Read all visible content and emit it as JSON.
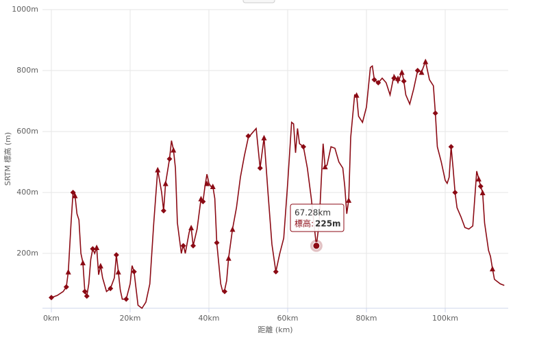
{
  "chart_data": {
    "type": "line",
    "x_label": "距離 (km)",
    "y_label": "SRTM 標高 (m)",
    "xlim": [
      -2.26,
      116
    ],
    "ylim": [
      20,
      1000
    ],
    "xticks": [
      {
        "value": 0,
        "label": "0km"
      },
      {
        "value": 20,
        "label": "20km"
      },
      {
        "value": 40,
        "label": "40km"
      },
      {
        "value": 60,
        "label": "60km"
      },
      {
        "value": 80,
        "label": "80km"
      },
      {
        "value": 100,
        "label": "100km"
      }
    ],
    "yticks": [
      {
        "value": 200,
        "label": "200m"
      },
      {
        "value": 400,
        "label": "400m"
      },
      {
        "value": 600,
        "label": "600m"
      },
      {
        "value": 800,
        "label": "800m"
      },
      {
        "value": 1000,
        "label": "1000m"
      }
    ],
    "grid": true,
    "series": [
      {
        "color": "#8b0a14",
        "x": [
          0,
          1.5,
          3,
          3.8,
          4.3,
          5,
          5.5,
          6,
          6.5,
          7,
          7.5,
          8,
          8.5,
          9,
          9.5,
          10,
          10.5,
          11,
          11.5,
          12,
          12.5,
          13,
          14,
          15,
          16,
          16.5,
          17,
          17.5,
          18,
          19,
          20,
          20.5,
          21,
          22,
          23,
          24,
          25,
          26,
          27,
          28,
          28.5,
          29,
          30,
          30.5,
          31,
          31.5,
          32,
          33,
          33.5,
          34,
          35,
          35.5,
          36,
          37,
          38,
          38.5,
          39,
          39.5,
          40,
          40.5,
          41,
          41.5,
          42,
          43,
          43.5,
          44,
          44.5,
          45,
          46,
          47,
          48,
          49,
          50,
          51,
          52,
          53,
          54,
          55,
          56,
          57,
          58,
          59,
          60,
          61,
          61.5,
          62,
          62.5,
          63,
          64,
          65,
          66,
          67.28,
          68,
          69,
          69.5,
          70,
          71,
          72,
          73,
          74,
          74.5,
          75,
          75.5,
          76,
          77,
          77.5,
          78,
          79,
          80,
          81,
          81.5,
          82,
          83,
          84,
          85,
          86,
          87,
          87.5,
          88,
          89,
          89.5,
          90,
          91,
          92,
          93,
          94,
          95,
          96,
          97,
          97.5,
          98,
          99,
          100,
          100.5,
          101,
          101.5,
          102,
          102.5,
          103,
          104,
          105,
          106,
          107,
          108,
          108.5,
          109,
          109.5,
          110,
          111,
          111.5,
          112,
          112.5,
          113,
          114,
          115
        ],
        "values": [
          55,
          62,
          75,
          90,
          140,
          300,
          400,
          390,
          330,
          310,
          200,
          170,
          75,
          60,
          100,
          180,
          215,
          200,
          220,
          130,
          160,
          120,
          75,
          85,
          120,
          195,
          140,
          80,
          50,
          50,
          100,
          160,
          140,
          30,
          20,
          40,
          100,
          300,
          475,
          400,
          340,
          430,
          510,
          570,
          540,
          480,
          300,
          200,
          230,
          200,
          270,
          285,
          225,
          280,
          380,
          370,
          420,
          460,
          430,
          420,
          420,
          380,
          235,
          100,
          75,
          80,
          110,
          185,
          280,
          350,
          450,
          520,
          580,
          595,
          610,
          480,
          580,
          400,
          230,
          140,
          200,
          250,
          430,
          630,
          625,
          530,
          610,
          560,
          550,
          480,
          380,
          225,
          300,
          560,
          485,
          490,
          550,
          545,
          500,
          480,
          420,
          330,
          375,
          580,
          720,
          720,
          650,
          630,
          680,
          810,
          815,
          770,
          760,
          775,
          760,
          720,
          785,
          775,
          760,
          795,
          765,
          720,
          690,
          740,
          800,
          795,
          830,
          770,
          750,
          660,
          550,
          500,
          440,
          430,
          450,
          550,
          480,
          400,
          350,
          320,
          285,
          280,
          290,
          470,
          445,
          420,
          400,
          300,
          210,
          190,
          150,
          115,
          110,
          100,
          95
        ]
      },
      {
        "type": "scatter",
        "symbol": "diamond",
        "color": "#8b0a14",
        "x": [
          0,
          3.8,
          5.5,
          8.5,
          9,
          10.5,
          15,
          16.5,
          19,
          21,
          28.5,
          30,
          33.5,
          36,
          38.5,
          42,
          44,
          50,
          53,
          57,
          64,
          82,
          83,
          87,
          89.5,
          93,
          97.5,
          101.5,
          102.5,
          109
        ],
        "values": [
          55,
          90,
          400,
          75,
          60,
          215,
          85,
          195,
          50,
          140,
          340,
          510,
          225,
          225,
          370,
          235,
          75,
          585,
          480,
          140,
          550,
          770,
          760,
          775,
          765,
          800,
          660,
          550,
          400,
          420
        ]
      },
      {
        "type": "scatter",
        "symbol": "triangle",
        "color": "#8b0a14",
        "x": [
          4.3,
          6,
          8,
          11.5,
          12.5,
          17,
          27,
          29,
          31,
          35.5,
          38,
          39.5,
          41,
          45,
          46,
          54,
          69.5,
          75.5,
          77.5,
          88,
          89,
          94,
          95,
          108.5,
          109.5,
          112
        ],
        "values": [
          140,
          390,
          170,
          220,
          160,
          140,
          475,
          430,
          540,
          285,
          380,
          430,
          420,
          185,
          280,
          580,
          485,
          375,
          720,
          775,
          795,
          795,
          830,
          445,
          400,
          150
        ]
      }
    ],
    "tooltip": {
      "x": 67.28,
      "y": 225,
      "title": "67.28km",
      "series_label": "標高:",
      "value_label": "225m"
    }
  }
}
